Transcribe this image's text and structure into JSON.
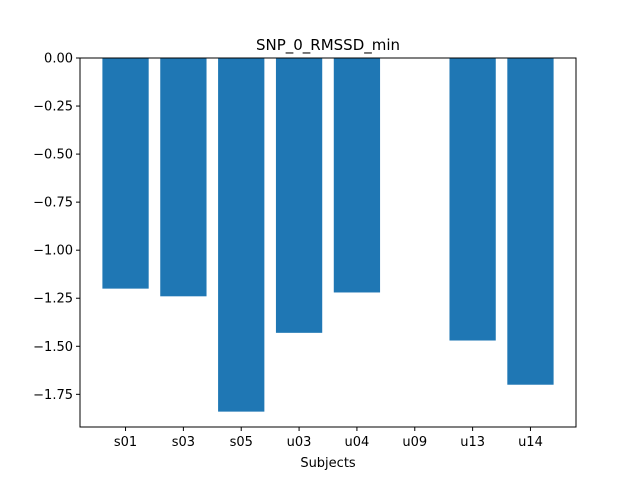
{
  "chart_data": {
    "type": "bar",
    "title": "SNP_0_RMSSD_min",
    "xlabel": "Subjects",
    "ylabel": "",
    "categories": [
      "s01",
      "s03",
      "s05",
      "u03",
      "u04",
      "u09",
      "u13",
      "u14"
    ],
    "values": [
      -1.2,
      -1.24,
      -1.84,
      -1.43,
      -1.22,
      0,
      -1.47,
      -1.7
    ],
    "ylim": [
      -1.92,
      0
    ],
    "yticks": [
      0,
      -0.25,
      -0.5,
      -0.75,
      -1.0,
      -1.25,
      -1.5,
      -1.75
    ],
    "ytick_labels": [
      "0.00",
      "−0.25",
      "−0.50",
      "−0.75",
      "−1.00",
      "−1.25",
      "−1.50",
      "−1.75"
    ],
    "grid": false,
    "bar_color": "#1f77b4"
  }
}
